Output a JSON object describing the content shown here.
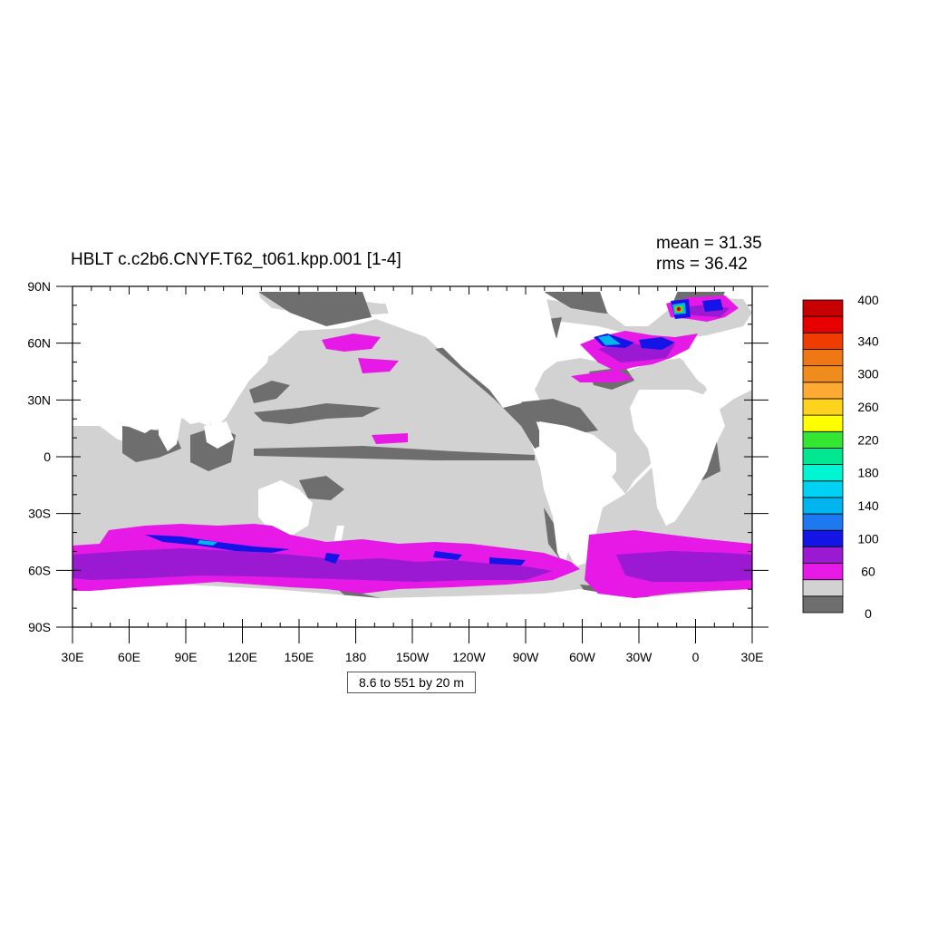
{
  "title": "HBLT c.c2b6.CNYF.T62_t061.kpp.001 [1-4]",
  "stats": {
    "mean": "mean = 31.35",
    "rms": "rms = 36.42"
  },
  "contour_info": "8.6 to 551 by 20 m",
  "x_ticks": [
    "30E",
    "60E",
    "90E",
    "120E",
    "150E",
    "180",
    "150W",
    "120W",
    "90W",
    "60W",
    "30W",
    "0",
    "30E"
  ],
  "y_ticks": [
    "90N",
    "60N",
    "30N",
    "0",
    "30S",
    "60S",
    "90S"
  ],
  "colors": {
    "land": "#ffffff",
    "shallow": "#6e6e6e",
    "ocean": "#d2d2d2",
    "magenta": "#e619e6",
    "purple": "#9b19d2",
    "blue": "#1414e6",
    "cyan": "#00b4f0",
    "green": "#32e632",
    "orange": "#f08c1e",
    "red": "#c80000"
  },
  "colorbar": {
    "colors": [
      "#6e6e6e",
      "#d2d2d2",
      "#e619e6",
      "#9b19d2",
      "#1414e6",
      "#1e78f0",
      "#00b4f0",
      "#00d2f5",
      "#00f5d2",
      "#00e691",
      "#32e632",
      "#ffff00",
      "#ffd21e",
      "#ffaa32",
      "#f08c1e",
      "#f07814",
      "#f03c00",
      "#e60000",
      "#c80000"
    ],
    "labels": [
      "0",
      "60",
      "100",
      "140",
      "180",
      "220",
      "260",
      "300",
      "340",
      "400"
    ]
  }
}
